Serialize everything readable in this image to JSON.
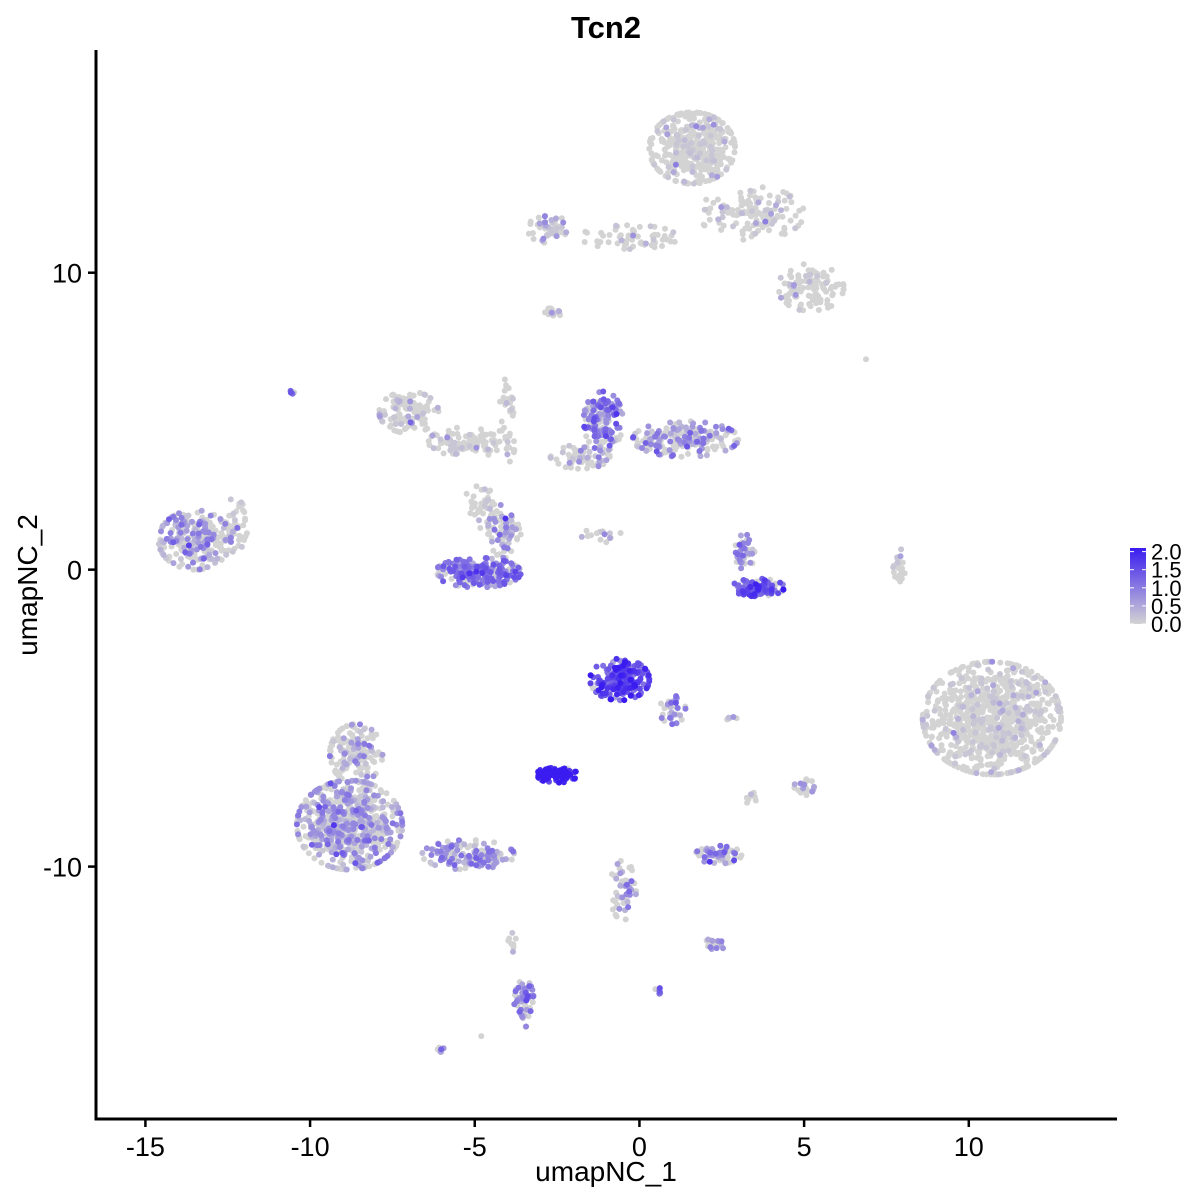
{
  "chart_data": {
    "type": "scatter",
    "title": "Tcn2",
    "xlabel": "umapNC_1",
    "ylabel": "umapNC_2",
    "xlim": [
      -16.5,
      14.5
    ],
    "ylim": [
      -18.5,
      17.5
    ],
    "x_ticks": [
      -15,
      -10,
      -5,
      0,
      5,
      10
    ],
    "x_tick_labels": [
      "-15",
      "-10",
      "-5",
      "0",
      "5",
      "10"
    ],
    "y_ticks": [
      -10,
      0,
      10
    ],
    "y_tick_labels": [
      "-10",
      "0",
      "10"
    ],
    "grid": false,
    "color_scale": {
      "low_color": "#d3d3d3",
      "high_color": "#3a1cf0",
      "min": 0,
      "max": 2.1,
      "ticks": [
        0.0,
        0.5,
        1.0,
        1.5,
        2.0
      ],
      "tick_labels": [
        "0.0",
        "0.5",
        "1.0",
        "1.5",
        "2.0"
      ],
      "legend_position": "right"
    },
    "clusters": [
      {
        "cx": 1.6,
        "cy": 14.2,
        "rx": 1.3,
        "ry": 1.2,
        "n": 420,
        "expr": 0.05
      },
      {
        "cx": 3.4,
        "cy": 12.0,
        "rx": 1.6,
        "ry": 0.9,
        "n": 130,
        "expr": 0.08
      },
      {
        "cx": 5.2,
        "cy": 9.5,
        "rx": 1.0,
        "ry": 0.8,
        "n": 110,
        "expr": 0.15
      },
      {
        "cx": -2.8,
        "cy": 11.5,
        "rx": 0.6,
        "ry": 0.5,
        "n": 50,
        "expr": 0.3
      },
      {
        "cx": -0.3,
        "cy": 11.2,
        "rx": 1.5,
        "ry": 0.4,
        "n": 60,
        "expr": 0.1
      },
      {
        "cx": -2.7,
        "cy": 8.6,
        "rx": 0.3,
        "ry": 0.2,
        "n": 15,
        "expr": 0.05
      },
      {
        "cx": -7.0,
        "cy": 5.3,
        "rx": 0.9,
        "ry": 0.7,
        "n": 120,
        "expr": 0.15
      },
      {
        "cx": -5.2,
        "cy": 4.3,
        "rx": 1.2,
        "ry": 0.5,
        "n": 90,
        "expr": 0.1
      },
      {
        "cx": -4.0,
        "cy": 5.2,
        "rx": 0.3,
        "ry": 1.6,
        "n": 40,
        "expr": 0.05
      },
      {
        "cx": -1.1,
        "cy": 5.0,
        "rx": 0.6,
        "ry": 1.0,
        "n": 160,
        "expr": 0.9
      },
      {
        "cx": 1.4,
        "cy": 4.4,
        "rx": 1.6,
        "ry": 0.6,
        "n": 200,
        "expr": 0.7
      },
      {
        "cx": -1.8,
        "cy": 3.8,
        "rx": 0.9,
        "ry": 0.4,
        "n": 60,
        "expr": 0.4
      },
      {
        "cx": -13.5,
        "cy": 1.0,
        "rx": 1.1,
        "ry": 1.0,
        "n": 260,
        "expr": 0.6
      },
      {
        "cx": -12.3,
        "cy": 1.5,
        "rx": 0.4,
        "ry": 0.9,
        "n": 50,
        "expr": 0.2
      },
      {
        "cx": -4.9,
        "cy": -0.1,
        "rx": 1.3,
        "ry": 0.5,
        "n": 230,
        "expr": 1.0
      },
      {
        "cx": -4.1,
        "cy": 1.3,
        "rx": 0.5,
        "ry": 0.9,
        "n": 80,
        "expr": 0.6
      },
      {
        "cx": -4.8,
        "cy": 2.2,
        "rx": 0.5,
        "ry": 0.8,
        "n": 40,
        "expr": 0.1
      },
      {
        "cx": 3.6,
        "cy": -0.6,
        "rx": 0.8,
        "ry": 0.3,
        "n": 110,
        "expr": 1.3
      },
      {
        "cx": 3.2,
        "cy": 0.6,
        "rx": 0.3,
        "ry": 0.6,
        "n": 40,
        "expr": 0.8
      },
      {
        "cx": -1.3,
        "cy": 1.2,
        "rx": 0.8,
        "ry": 0.3,
        "n": 15,
        "expr": 0.05
      },
      {
        "cx": 7.9,
        "cy": 0.2,
        "rx": 0.2,
        "ry": 0.6,
        "n": 25,
        "expr": 0.0
      },
      {
        "cx": 10.7,
        "cy": -5.0,
        "rx": 2.1,
        "ry": 1.9,
        "n": 900,
        "expr": 0.05
      },
      {
        "cx": -0.6,
        "cy": -3.7,
        "rx": 0.9,
        "ry": 0.7,
        "n": 200,
        "expr": 1.5
      },
      {
        "cx": 1.0,
        "cy": -4.7,
        "rx": 0.4,
        "ry": 0.5,
        "n": 30,
        "expr": 0.8
      },
      {
        "cx": -2.5,
        "cy": -6.9,
        "rx": 0.6,
        "ry": 0.3,
        "n": 90,
        "expr": 2.0
      },
      {
        "cx": -8.8,
        "cy": -8.6,
        "rx": 1.6,
        "ry": 1.5,
        "n": 650,
        "expr": 0.6
      },
      {
        "cx": -8.6,
        "cy": -6.2,
        "rx": 0.8,
        "ry": 1.0,
        "n": 150,
        "expr": 0.5
      },
      {
        "cx": -5.2,
        "cy": -9.6,
        "rx": 1.4,
        "ry": 0.5,
        "n": 140,
        "expr": 0.8
      },
      {
        "cx": 2.4,
        "cy": -9.6,
        "rx": 0.7,
        "ry": 0.3,
        "n": 70,
        "expr": 0.7
      },
      {
        "cx": -0.5,
        "cy": -10.8,
        "rx": 0.4,
        "ry": 1.0,
        "n": 50,
        "expr": 0.6
      },
      {
        "cx": 2.3,
        "cy": -12.6,
        "rx": 0.3,
        "ry": 0.25,
        "n": 20,
        "expr": 0.5
      },
      {
        "cx": -3.5,
        "cy": -14.6,
        "rx": 0.3,
        "ry": 0.8,
        "n": 60,
        "expr": 0.9
      },
      {
        "cx": 5.0,
        "cy": -7.3,
        "rx": 0.3,
        "ry": 0.3,
        "n": 20,
        "expr": 0.3
      },
      {
        "cx": 3.4,
        "cy": -7.7,
        "rx": 0.2,
        "ry": 0.2,
        "n": 8,
        "expr": 0.1
      },
      {
        "cx": 0.6,
        "cy": -14.2,
        "rx": 0.15,
        "ry": 0.12,
        "n": 8,
        "expr": 1.0
      },
      {
        "cx": -6.0,
        "cy": -16.2,
        "rx": 0.15,
        "ry": 0.12,
        "n": 6,
        "expr": 0.6
      },
      {
        "cx": -3.9,
        "cy": -12.5,
        "rx": 0.15,
        "ry": 0.4,
        "n": 8,
        "expr": 0.1
      },
      {
        "cx": 2.8,
        "cy": -5.0,
        "rx": 0.15,
        "ry": 0.12,
        "n": 6,
        "expr": 0.4
      },
      {
        "cx": -10.6,
        "cy": 6.0,
        "rx": 0.12,
        "ry": 0.12,
        "n": 4,
        "expr": 1.2
      },
      {
        "cx": 6.9,
        "cy": 7.1,
        "rx": 0.05,
        "ry": 0.05,
        "n": 1,
        "expr": 0.0
      },
      {
        "cx": -4.8,
        "cy": -15.7,
        "rx": 0.05,
        "ry": 0.05,
        "n": 1,
        "expr": 0.0
      }
    ]
  }
}
